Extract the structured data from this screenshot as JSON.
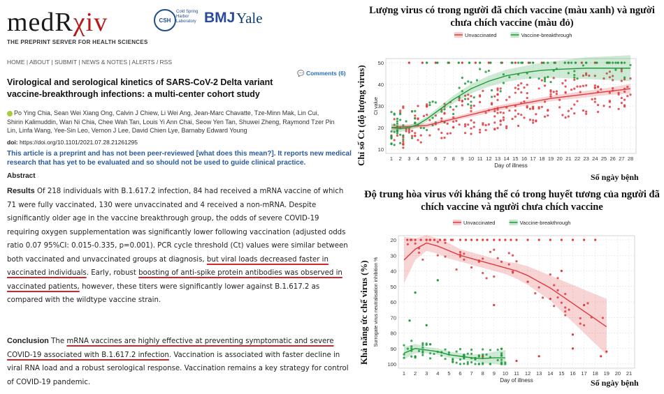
{
  "paper": {
    "logo_main": "medR",
    "logo_rx": "χiv",
    "tagline": "THE PREPRINT SERVER FOR HEALTH SCIENCES",
    "csh_badge": "CSH",
    "csh_text": "Cold Spring Harbor Laboratory",
    "partner_bmj": "BMJ",
    "partner_yale": "Yale",
    "nav": "HOME | ABOUT | SUBMIT | NEWS & NOTES | ALERTS / RSS",
    "comments": "Comments (6)",
    "title": "Virological and serological kinetics of SARS-CoV-2 Delta variant vaccine-breakthrough infections: a multi-center cohort study",
    "authors": "Po Ying Chia, Sean Wei Xiang Ong, Calvin J Chiew, Li Wei Ang, Jean-Marc Chavatte, Tze-Minn Mak, Lin Cui, Shirin Kalimuddin, Wan Ni Chia, Chee Wah Tan, Louis Yi Ann Chai, Seow Yen Tan, Shuwei Zheng, Raymond Tzer Pin Lin, Linfa Wang, Yee-Sin Leo, Vernon J Lee, David Chien Lye, Barnaby Edward Young",
    "doi_label": "doi:",
    "doi": "https://doi.org/10.1101/2021.07.28.21261295",
    "warning": "This article is a preprint and has not been peer-reviewed [what does this mean?]. It reports new medical research that has yet to be evaluated and so should not be used to guide clinical practice.",
    "abstract_heading": "Abstract",
    "results_label": "Results",
    "results_p1": "Of 218 individuals with B.1.617.2 infection, 84 had received a mRNA vaccine of which 71 were fully vaccinated, 130 were unvaccinated and 4 received a non-mRNA. Despite significantly older age in the vaccine breakthrough group, the odds of severe COVID-19 requiring oxygen supplementation was significantly lower following vaccination (adjusted odds ratio 0.07 95%CI: 0.015-0.335, p=0.001). PCR cycle threshold (Ct) values were similar between both vaccinated and unvaccinated groups at diagnosis,",
    "results_ul1": "but viral loads decreased faster in vaccinated individuals",
    "results_p2": ". Early, robust",
    "results_ul2": "boosting of anti-spike protein antibodies was observed in vaccinated patients,",
    "results_p3": "however, these titers were significantly lower against B.1.617.2 as compared with the wildtype vaccine strain.",
    "conclusion_label": "Conclusion",
    "conclusion_p1": "The",
    "conclusion_ul": "mRNA vaccines are highly effective at preventing symptomatic and severe COVID-19 associated with B.1.617.2 infection",
    "conclusion_p2": ". Vaccination is associated with faster decline in viral RNA load and a robust serological response. Vaccination remains a key strategy for control of COVID-19 pandemic."
  },
  "annotations": {
    "top_heading": "Lượng virus có trong người đã chích vaccine (màu xanh) và người chưa chích vaccine (màu đỏ)",
    "top_ylabel_vi": "Chỉ số Ct (độ lượng virus)",
    "top_xlabel_vi": "Số ngày bệnh",
    "bottom_heading": "Độ trung hòa virus với kháng thể có trong huyết tương của người đã chích vaccine và người chưa chích vaccine",
    "bottom_ylabel_vi": "Khả năng ức chế virus (%)",
    "bottom_xlabel_vi": "Số ngày bệnh"
  },
  "chart_data": [
    {
      "type": "scatter",
      "xlabel": "Day of illness",
      "ylabel": "Ct value",
      "xlim": [
        1,
        28
      ],
      "ylim": [
        50,
        10
      ],
      "y_reversed": true,
      "yticks": [
        10,
        20,
        30,
        40,
        50
      ],
      "xticks": [
        1,
        2,
        3,
        4,
        5,
        6,
        7,
        8,
        9,
        10,
        11,
        12,
        13,
        14,
        15,
        16,
        17,
        18,
        19,
        20,
        21,
        22,
        23,
        24,
        25,
        26,
        27,
        28
      ],
      "grid": true,
      "legend_position": "top",
      "series": [
        {
          "name": "Unvaccinated",
          "color": "#e0393e",
          "trend": [
            [
              1,
              20
            ],
            [
              3,
              20.5
            ],
            [
              5,
              21
            ],
            [
              7,
              23
            ],
            [
              9,
              25
            ],
            [
              11,
              27
            ],
            [
              13,
              29
            ],
            [
              15,
              30.5
            ],
            [
              17,
              32
            ],
            [
              19,
              33.5
            ],
            [
              21,
              34.5
            ],
            [
              23,
              35.5
            ],
            [
              25,
              36.5
            ],
            [
              28,
              38
            ]
          ],
          "band_halfwidth": [
            1.5,
            1,
            1,
            1,
            1,
            1.2,
            1.2,
            1.2,
            1.2,
            1.3,
            1.4,
            1.5,
            1.6,
            2.2
          ]
        },
        {
          "name": "Vaccine-breakthrough",
          "color": "#1e9a3c",
          "trend": [
            [
              1,
              20
            ],
            [
              2,
              19.5
            ],
            [
              3,
              20
            ],
            [
              4,
              21.5
            ],
            [
              5,
              24
            ],
            [
              6,
              27
            ],
            [
              7,
              30
            ],
            [
              8,
              33
            ],
            [
              9,
              35.5
            ],
            [
              10,
              38
            ],
            [
              12,
              41.5
            ],
            [
              14,
              44
            ],
            [
              16,
              45.5
            ],
            [
              18,
              46.5
            ],
            [
              20,
              47
            ],
            [
              23,
              47.5
            ],
            [
              28,
              47.5
            ]
          ],
          "band_halfwidth": [
            2,
            1.5,
            1.2,
            1.2,
            1.2,
            1.4,
            1.6,
            1.8,
            2,
            2.2,
            2.5,
            2.8,
            3,
            3.5,
            4,
            5,
            6
          ]
        }
      ]
    },
    {
      "type": "scatter",
      "xlabel": "Day of illness",
      "ylabel": "Surrogate virus neutralisation inhibition %",
      "xlim": [
        1,
        21
      ],
      "ylim": [
        20,
        100
      ],
      "yticks": [
        20,
        30,
        40,
        50,
        60,
        70,
        80,
        90,
        100
      ],
      "xticks": [
        1,
        2,
        3,
        4,
        5,
        6,
        7,
        8,
        9,
        10,
        11,
        12,
        13,
        14,
        15,
        16,
        17,
        18,
        19,
        20,
        21
      ],
      "grid": true,
      "legend_position": "top",
      "series": [
        {
          "name": "Unvaccinated",
          "color": "#e0393e",
          "trend": [
            [
              1,
              33
            ],
            [
              2,
              26
            ],
            [
              3,
              22
            ],
            [
              4,
              24
            ],
            [
              5,
              27
            ],
            [
              6,
              30
            ],
            [
              7,
              32
            ],
            [
              8,
              34
            ],
            [
              9,
              36
            ],
            [
              10,
              38
            ],
            [
              11,
              40
            ],
            [
              12,
              43
            ],
            [
              13,
              47
            ],
            [
              14,
              51
            ],
            [
              15,
              56
            ],
            [
              16,
              61
            ],
            [
              17,
              66
            ],
            [
              18,
              71
            ],
            [
              19,
              76
            ]
          ],
          "band_halfwidth": [
            15,
            7,
            5,
            5,
            5,
            4,
            4,
            4,
            4,
            4,
            5,
            6,
            7,
            8,
            10,
            12,
            14,
            16,
            18
          ]
        },
        {
          "name": "Vaccine-breakthrough",
          "color": "#1e9a3c",
          "trend": [
            [
              1,
              93
            ],
            [
              2,
              90
            ],
            [
              3,
              91
            ],
            [
              4,
              92
            ],
            [
              5,
              94
            ],
            [
              6,
              95
            ],
            [
              7,
              96
            ],
            [
              8,
              96.5
            ],
            [
              9,
              96
            ],
            [
              10,
              96
            ]
          ],
          "band_halfwidth": [
            4,
            3,
            2,
            2,
            2,
            2,
            2,
            3,
            4,
            5
          ]
        }
      ]
    }
  ]
}
